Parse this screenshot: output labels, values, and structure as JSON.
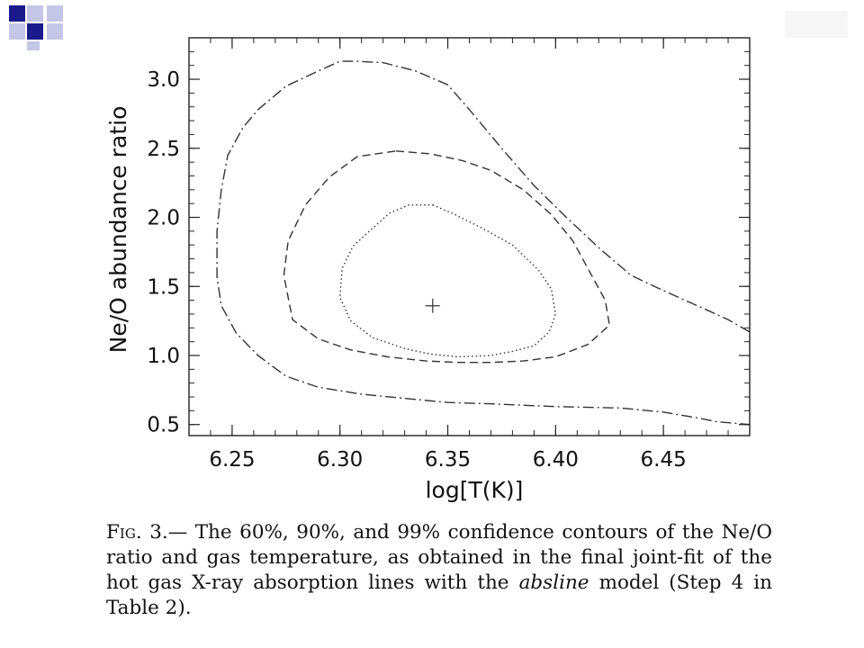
{
  "slide": {
    "logo_icon": "blue-squares-logo",
    "colors": {
      "logo_dark": "#1a1a8c",
      "logo_light": "#c5c5e8",
      "ink": "#111111"
    }
  },
  "chart_data": {
    "type": "line",
    "xlabel": "log[T(K)]",
    "ylabel": "Ne/O abundance ratio",
    "xlim": [
      6.23,
      6.49
    ],
    "ylim": [
      0.42,
      3.3
    ],
    "xticks": [
      "6.25",
      "6.30",
      "6.35",
      "6.40",
      "6.45"
    ],
    "yticks": [
      "0.5",
      "1.0",
      "1.5",
      "2.0",
      "2.5",
      "3.0"
    ],
    "grid": false,
    "best_fit": {
      "x": 6.343,
      "y": 1.36
    },
    "series": [
      {
        "level": "60%",
        "style": "dotted",
        "x": [
          6.343,
          6.352,
          6.365,
          6.38,
          6.392,
          6.398,
          6.4,
          6.397,
          6.39,
          6.38,
          6.37,
          6.355,
          6.342,
          6.33,
          6.315,
          6.305,
          6.3,
          6.301,
          6.306,
          6.315,
          6.323,
          6.332,
          6.343
        ],
        "y": [
          2.09,
          2.03,
          1.93,
          1.8,
          1.62,
          1.48,
          1.3,
          1.17,
          1.07,
          1.03,
          1.0,
          0.99,
          1.01,
          1.05,
          1.13,
          1.25,
          1.42,
          1.63,
          1.79,
          1.92,
          2.03,
          2.09,
          2.09
        ]
      },
      {
        "level": "90%",
        "style": "dashed",
        "x": [
          6.326,
          6.342,
          6.357,
          6.37,
          6.385,
          6.398,
          6.408,
          6.416,
          6.423,
          6.425,
          6.415,
          6.4,
          6.385,
          6.37,
          6.355,
          6.34,
          6.322,
          6.305,
          6.29,
          6.278,
          6.274,
          6.276,
          6.284,
          6.295,
          6.308,
          6.326
        ],
        "y": [
          2.48,
          2.46,
          2.41,
          2.34,
          2.2,
          2.02,
          1.83,
          1.6,
          1.4,
          1.22,
          1.08,
          0.99,
          0.96,
          0.95,
          0.95,
          0.96,
          0.99,
          1.04,
          1.12,
          1.26,
          1.58,
          1.83,
          2.09,
          2.29,
          2.44,
          2.48
        ]
      },
      {
        "level": "99%",
        "style": "dash-dot",
        "x": [
          6.49,
          6.48,
          6.47,
          6.45,
          6.435,
          6.42,
          6.405,
          6.39,
          6.375,
          6.36,
          6.35,
          6.335,
          6.32,
          6.308,
          6.3,
          6.29,
          6.275,
          6.262,
          6.255,
          6.248,
          6.245,
          6.243,
          6.243,
          6.245,
          6.252,
          6.262,
          6.275,
          6.29,
          6.31,
          6.33,
          6.35,
          6.37,
          6.4,
          6.43,
          6.45,
          6.465,
          6.475,
          6.49
        ],
        "y": [
          1.17,
          1.26,
          1.33,
          1.47,
          1.58,
          1.78,
          2.0,
          2.23,
          2.5,
          2.78,
          2.96,
          3.06,
          3.12,
          3.13,
          3.13,
          3.06,
          2.95,
          2.78,
          2.65,
          2.45,
          2.2,
          1.9,
          1.57,
          1.36,
          1.16,
          1.0,
          0.85,
          0.77,
          0.72,
          0.69,
          0.66,
          0.65,
          0.63,
          0.62,
          0.59,
          0.55,
          0.52,
          0.5
        ]
      }
    ]
  },
  "caption": {
    "fig_label": "Fig.",
    "fig_number": "3.—",
    "text_1": "The 60%, 90%, and 99% confidence contours of the Ne/O ratio and gas temperature, as obtained in the final joint-fit of the hot gas X-ray absorption lines with the",
    "model_name": "absline",
    "text_2": "model (Step 4 in Table 2)."
  }
}
